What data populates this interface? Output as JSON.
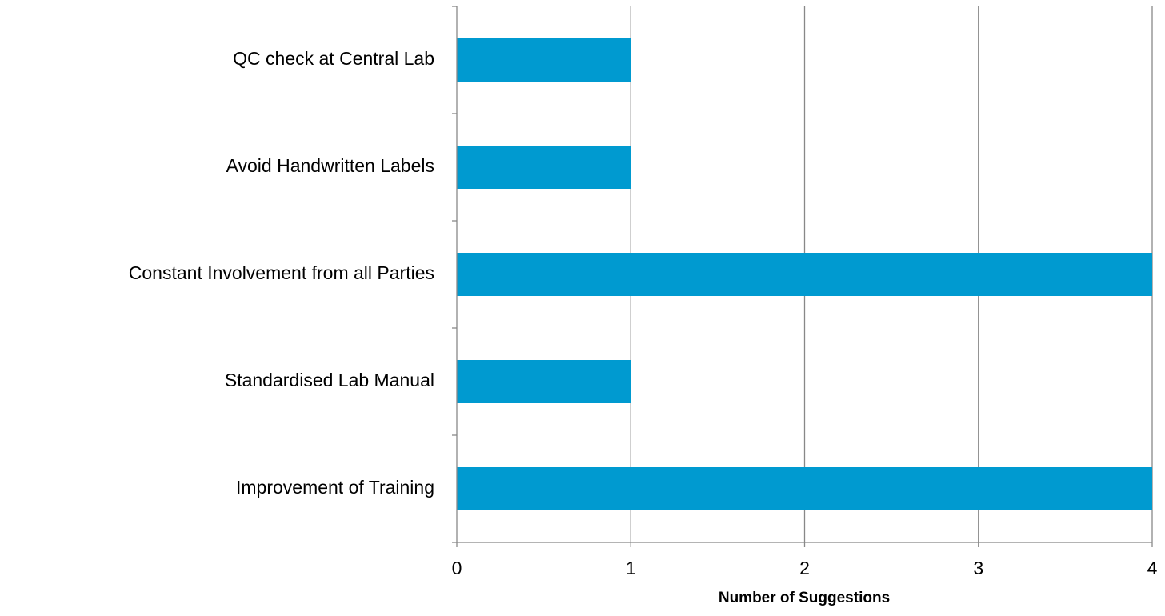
{
  "chart_data": {
    "type": "barh",
    "categories": [
      "QC check at Central Lab",
      "Avoid Handwritten Labels",
      "Constant Involvement from all Parties",
      "Standardised Lab Manual",
      "Improvement of Training"
    ],
    "values": [
      1,
      1,
      4,
      1,
      4
    ],
    "color": "#009ad0",
    "xlabel": "Number of Suggestions",
    "xlim": [
      0,
      4
    ],
    "xticks": [
      0,
      1,
      2,
      3,
      4
    ],
    "grid": true
  }
}
